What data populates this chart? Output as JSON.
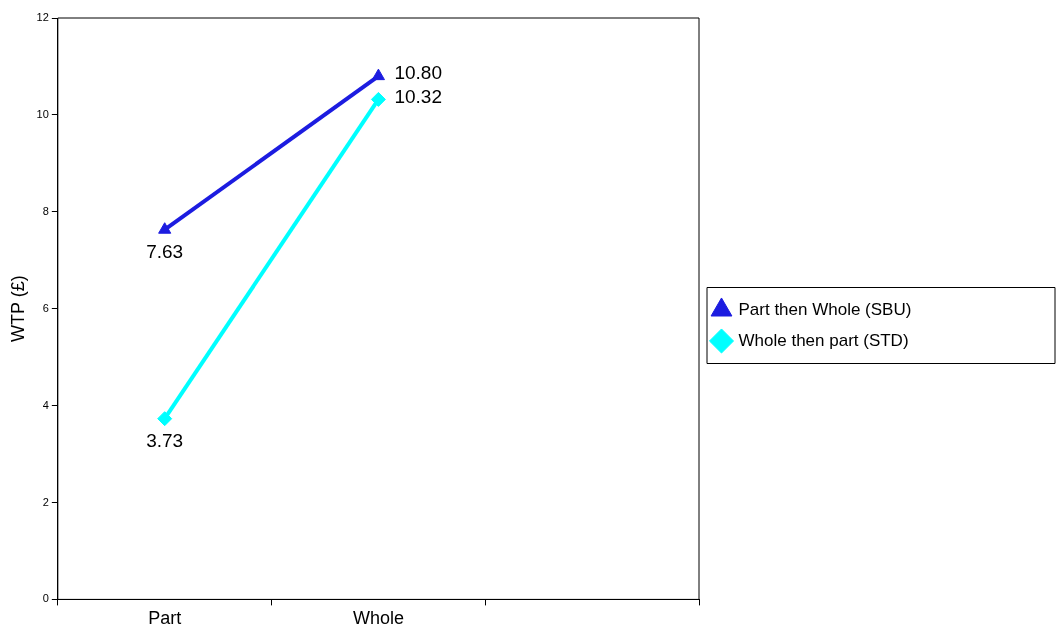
{
  "chart_data": {
    "type": "line",
    "ylabel": "WTP (£)",
    "categories": [
      "Part",
      "Whole",
      null
    ],
    "series": [
      {
        "name": "Part then Whole (SBU)",
        "color": "#1c1ce0",
        "marker": "triangle",
        "values": [
          7.63,
          10.8,
          null
        ],
        "value_labels": [
          "7.63",
          "10.80",
          null
        ]
      },
      {
        "name": "Whole then part (STD)",
        "color": "#00ffff",
        "marker": "diamond",
        "values": [
          3.73,
          10.32,
          null
        ],
        "value_labels": [
          "3.73",
          "10.32",
          null
        ]
      }
    ],
    "ylim": [
      0,
      12
    ],
    "yticks": [
      0,
      2,
      4,
      6,
      8,
      10,
      12
    ],
    "grid": false,
    "legend": "right"
  }
}
